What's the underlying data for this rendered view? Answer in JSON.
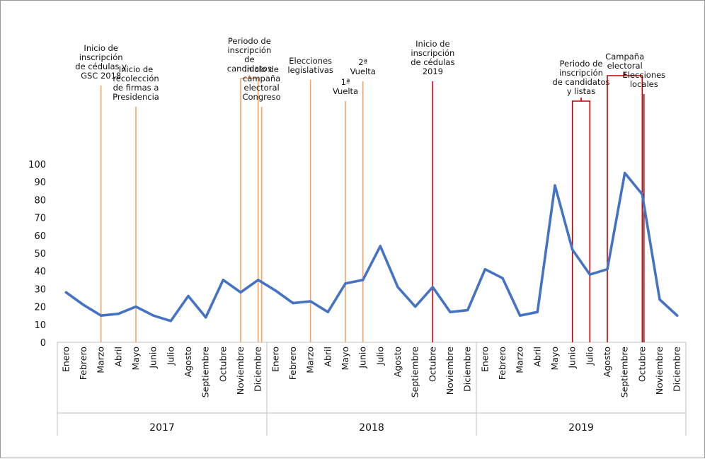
{
  "chart_data": {
    "type": "line",
    "title": "",
    "xlabel": "",
    "ylabel": "",
    "ylim": [
      0,
      100
    ],
    "yticks": [
      0,
      10,
      20,
      30,
      40,
      50,
      60,
      70,
      80,
      90,
      100
    ],
    "grid": false,
    "years": [
      "2017",
      "2018",
      "2019"
    ],
    "months": [
      "Enero",
      "Febrero",
      "Marzo",
      "Abril",
      "Mayo",
      "Junio",
      "Julio",
      "Agosto",
      "Septiembre",
      "Octubre",
      "Noviembre",
      "Diciembre"
    ],
    "series": [
      {
        "color": "#4472c4",
        "values": [
          28,
          21,
          15,
          16,
          20,
          15,
          12,
          26,
          14,
          35,
          28,
          35,
          29,
          22,
          23,
          17,
          33,
          35,
          54,
          31,
          20,
          31,
          17,
          18,
          41,
          36,
          15,
          17,
          88,
          52,
          38,
          41,
          95,
          83,
          24,
          15
        ]
      }
    ],
    "events": [
      {
        "kind": "line",
        "year": 0,
        "month": 2,
        "color": "#f4a460",
        "top": 120,
        "lines": [
          "Inicio de",
          "inscripción",
          "de cédulas y",
          "GSC 2018"
        ]
      },
      {
        "kind": "line",
        "year": 0,
        "month": 4,
        "color": "#f4a460",
        "top": 150,
        "lines": [
          "Inicio de",
          "recolección",
          "de firmas a",
          "Presidencia"
        ]
      },
      {
        "kind": "range",
        "year": 0,
        "month_start": 10,
        "month_end": 11,
        "color": "#f4a460",
        "top": 110,
        "lines": [
          "Periodo de",
          "inscripción",
          "de",
          "candidatos"
        ]
      },
      {
        "kind": "line",
        "year": 0,
        "month": 11.2,
        "color": "#f4a460",
        "top": 150,
        "lines": [
          "Inicio de",
          "campaña",
          "electoral",
          "Congreso"
        ]
      },
      {
        "kind": "line",
        "year": 1,
        "month": 2,
        "color": "#f4a460",
        "top": 112,
        "lines": [
          "Elecciones",
          "legislativas"
        ]
      },
      {
        "kind": "line",
        "year": 1,
        "month": 4,
        "color": "#f4a460",
        "top": 142,
        "lines": [
          "1ª",
          "Vuelta"
        ]
      },
      {
        "kind": "line",
        "year": 1,
        "month": 5,
        "color": "#f4a460",
        "top": 114,
        "lines": [
          "2ª",
          "Vuelta"
        ]
      },
      {
        "kind": "line",
        "year": 1,
        "month": 9,
        "color": "#c00000",
        "top": 114,
        "lines": [
          "Inicio de",
          "inscripción",
          "de cédulas",
          "2019"
        ]
      },
      {
        "kind": "range",
        "year": 2,
        "month_start": 5,
        "month_end": 6,
        "color": "#c00000",
        "top": 142,
        "lines": [
          "Periodo de",
          "inscripción",
          "de candidatos",
          "y listas"
        ]
      },
      {
        "kind": "range",
        "year": 2,
        "month_start": 7,
        "month_end": 9,
        "color": "#c00000",
        "top": 106,
        "lines": [
          "Campaña",
          "electoral"
        ]
      },
      {
        "kind": "line",
        "year": 2,
        "month": 9.1,
        "color": "#c00000",
        "top": 132,
        "lines": [
          "Elecciones",
          "locales"
        ]
      }
    ]
  }
}
